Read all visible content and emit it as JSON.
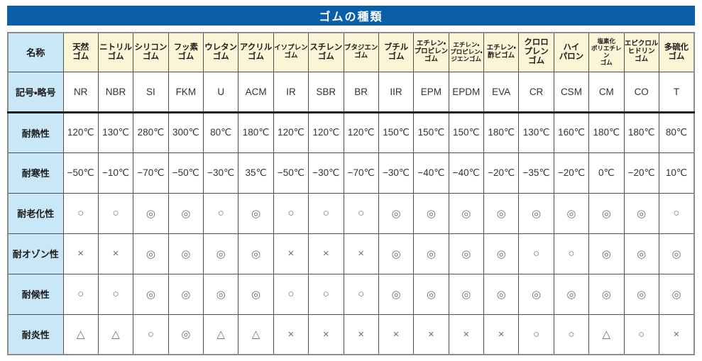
{
  "title": "ゴムの種類",
  "colors": {
    "title_bg": "#0b5fa9",
    "label_bg": "#cae7f8",
    "header_bg": "#fbf4d6",
    "grid_border": "#4e4e4e",
    "outer_border": "#8d8d8d"
  },
  "table": {
    "corner_label": "名称",
    "columns": [
      [
        "天然",
        "ゴム"
      ],
      [
        "ニトリル",
        "ゴム"
      ],
      [
        "シリコン",
        "ゴム"
      ],
      [
        "フッ素",
        "ゴム"
      ],
      [
        "ウレタン",
        "ゴム"
      ],
      [
        "アクリル",
        "ゴム"
      ],
      [
        "イソプレン",
        "ゴム"
      ],
      [
        "スチレン",
        "ゴム"
      ],
      [
        "ブタジエン",
        "ゴム"
      ],
      [
        "ブチル",
        "ゴム"
      ],
      [
        "エチレン・",
        "プロピレン",
        "ゴム"
      ],
      [
        "エチレン・",
        "プロピレン・",
        "ジエンゴム"
      ],
      [
        "エチレン・",
        "酢ビゴム"
      ],
      [
        "クロロ",
        "プレン",
        "ゴム"
      ],
      [
        "ハイ",
        "パロン"
      ],
      [
        "塩素化",
        "ポリエチレン",
        "ゴム"
      ],
      [
        "エピクロル",
        "ヒドリン",
        "ゴム"
      ],
      [
        "多硫化",
        "ゴム"
      ]
    ],
    "rows": [
      {
        "label": "記号・略号",
        "values": [
          "NR",
          "NBR",
          "SI",
          "FKM",
          "U",
          "ACM",
          "IR",
          "SBR",
          "BR",
          "IIR",
          "EPM",
          "EPDM",
          "EVA",
          "CR",
          "CSM",
          "CM",
          "CO",
          "T"
        ]
      },
      {
        "label": "耐熱性",
        "values": [
          "120℃",
          "130℃",
          "280℃",
          "300℃",
          "80℃",
          "180℃",
          "120℃",
          "120℃",
          "120℃",
          "150℃",
          "150℃",
          "150℃",
          "180℃",
          "130℃",
          "160℃",
          "180℃",
          "180℃",
          "80℃"
        ]
      },
      {
        "label": "耐寒性",
        "values": [
          "−50℃",
          "−10℃",
          "−70℃",
          "−50℃",
          "−30℃",
          "35℃",
          "−50℃",
          "−30℃",
          "−70℃",
          "−30℃",
          "−40℃",
          "−40℃",
          "−20℃",
          "−35℃",
          "−20℃",
          "0℃",
          "−20℃",
          "10℃"
        ]
      },
      {
        "label": "耐老化性",
        "values": [
          "○",
          "○",
          "◎",
          "◎",
          "○",
          "◎",
          "○",
          "○",
          "○",
          "◎",
          "◎",
          "◎",
          "◎",
          "◎",
          "◎",
          "◎",
          "◎",
          "○"
        ]
      },
      {
        "label": "耐オゾン性",
        "values": [
          "×",
          "×",
          "◎",
          "◎",
          "◎",
          "◎",
          "×",
          "×",
          "×",
          "◎",
          "◎",
          "◎",
          "◎",
          "○",
          "○",
          "◎",
          "◎",
          "◎"
        ]
      },
      {
        "label": "耐候性",
        "values": [
          "○",
          "○",
          "◎",
          "◎",
          "◎",
          "◎",
          "○",
          "○",
          "○",
          "◎",
          "◎",
          "◎",
          "◎",
          "◎",
          "◎",
          "◎",
          "◎",
          "◎"
        ]
      },
      {
        "label": "耐炎性",
        "values": [
          "△",
          "△",
          "○",
          "◎",
          "△",
          "△",
          "×",
          "×",
          "×",
          "×",
          "×",
          "×",
          "×",
          "○",
          "○",
          "△",
          "○",
          "×"
        ]
      }
    ]
  }
}
